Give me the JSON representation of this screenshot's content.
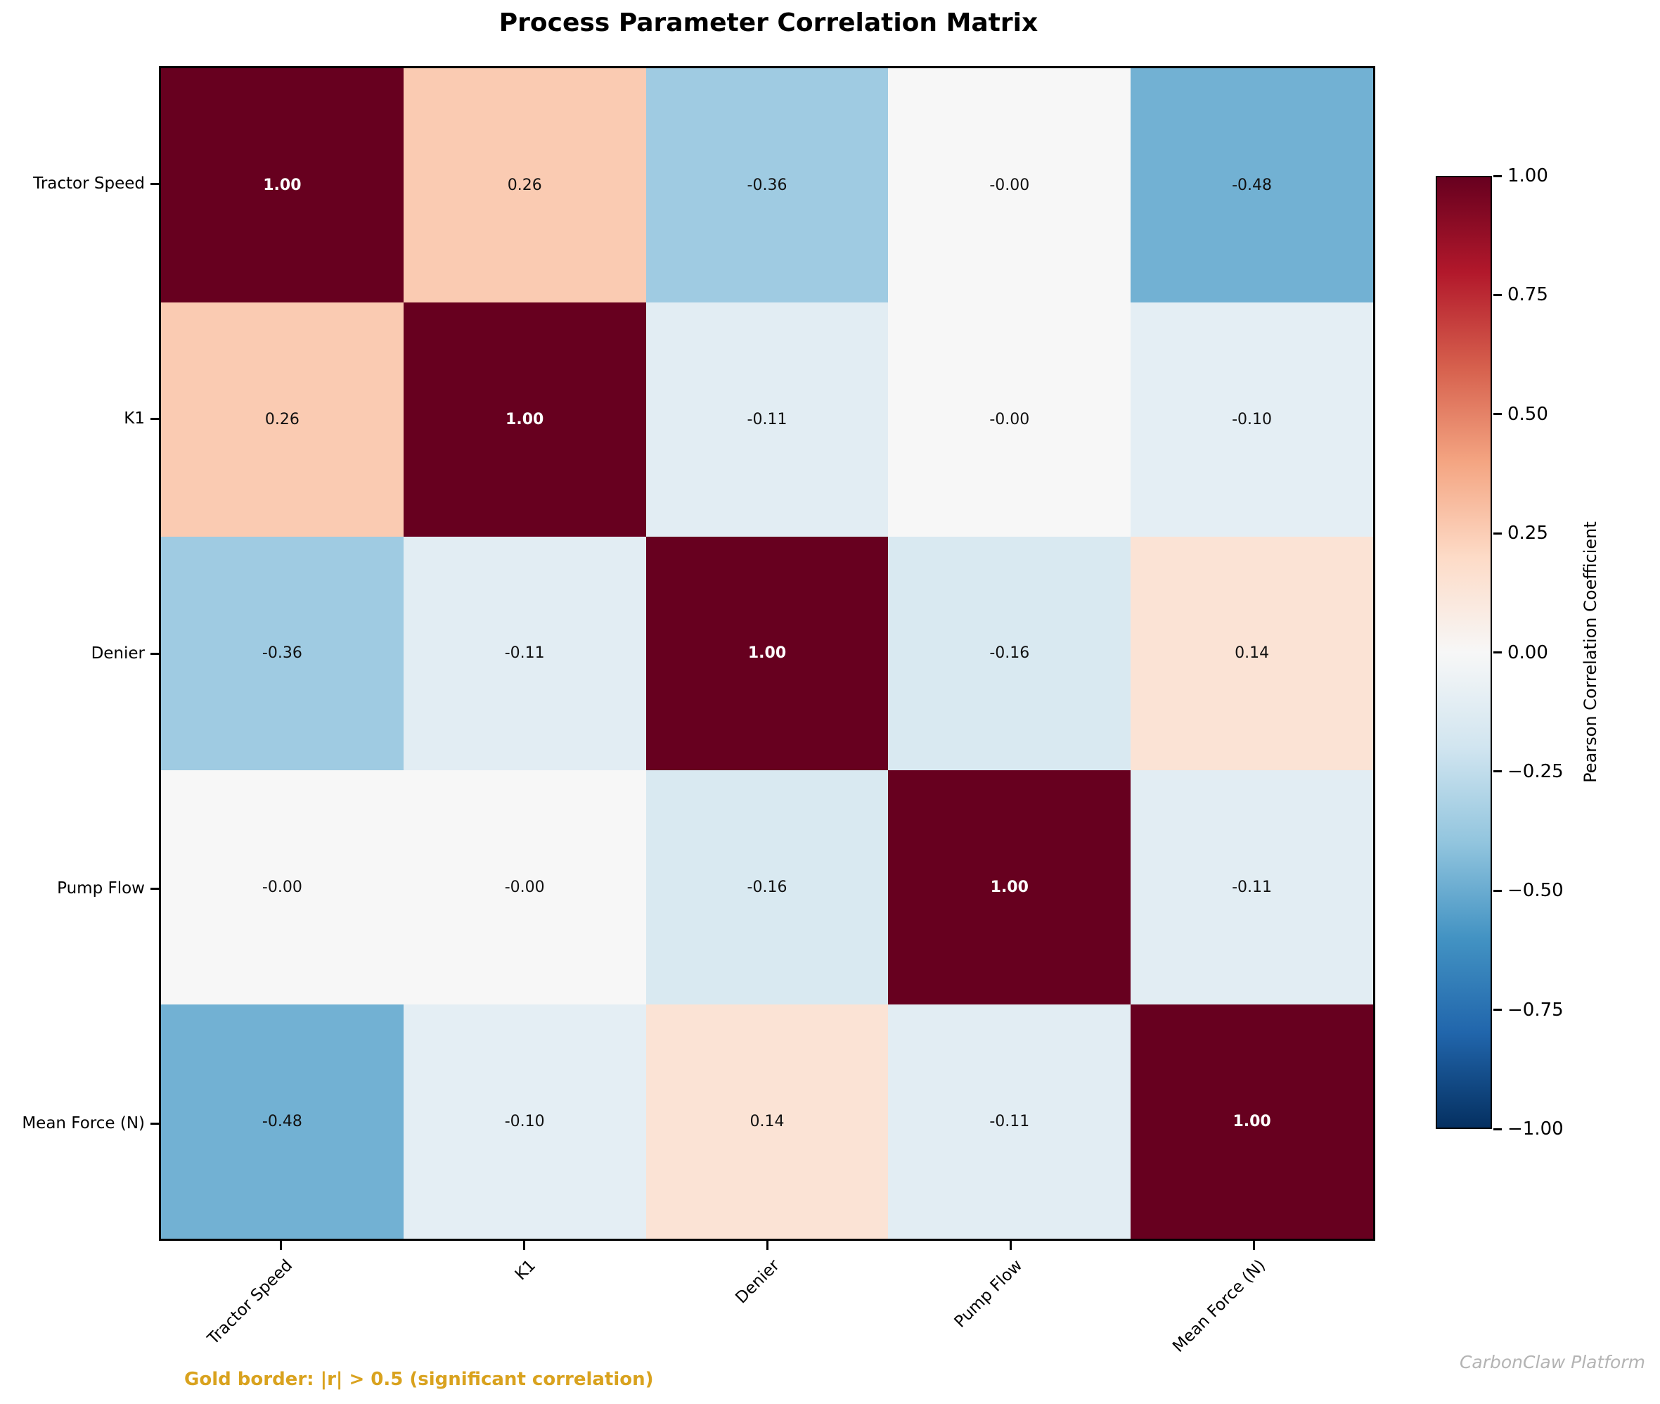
{
  "title": "Process Parameter Correlation Matrix",
  "annotations": {
    "gold_note": "Gold border: |r| > 0.5 (significant correlation)",
    "watermark": "CarbonClaw Platform"
  },
  "colors": {
    "note_gold": "#D9A21E",
    "watermark_gray": "#B4B4B4",
    "cell_text_dark": "#111111",
    "cell_text_light": "#FFFFFF",
    "axis_black": "#000000",
    "diagonal_maroon": "#67001F",
    "strong_negative_blue": "#72B1D3"
  },
  "chart_data": {
    "type": "heatmap",
    "title": "Process Parameter Correlation Matrix",
    "categories": [
      "Tractor Speed",
      "K1",
      "Denier",
      "Pump Flow",
      "Mean Force (N)"
    ],
    "matrix": [
      [
        1.0,
        0.26,
        -0.36,
        -0.0,
        -0.48
      ],
      [
        0.26,
        1.0,
        -0.11,
        -0.0,
        -0.1
      ],
      [
        -0.36,
        -0.11,
        1.0,
        -0.16,
        0.14
      ],
      [
        -0.0,
        -0.0,
        -0.16,
        1.0,
        -0.11
      ],
      [
        -0.48,
        -0.1,
        0.14,
        -0.11,
        1.0
      ]
    ],
    "cell_labels": [
      [
        "1.00",
        "0.26",
        "-0.36",
        "-0.00",
        "-0.48"
      ],
      [
        "0.26",
        "1.00",
        "-0.11",
        "-0.00",
        "-0.10"
      ],
      [
        "-0.36",
        "-0.11",
        "1.00",
        "-0.16",
        "0.14"
      ],
      [
        "-0.00",
        "-0.00",
        "-0.16",
        "1.00",
        "-0.11"
      ],
      [
        "-0.48",
        "-0.10",
        "0.14",
        "-0.11",
        "1.00"
      ]
    ],
    "value_range": [
      -1,
      1
    ],
    "colormap": "RdBu_r",
    "grid": false,
    "legend_position": "right-colorbar",
    "colorbar": {
      "label": "Pearson Correlation Coefficient",
      "tick_labels": [
        "1.00",
        "0.75",
        "0.50",
        "0.25",
        "0.00",
        "−0.25",
        "−0.50",
        "−0.75",
        "−1.00"
      ],
      "tick_values": [
        1,
        0.75,
        0.5,
        0.25,
        0,
        -0.25,
        -0.5,
        -0.75,
        -1
      ],
      "gradient_bottom_to_top": [
        "#053061",
        "#2166ac",
        "#4393c3",
        "#92c5de",
        "#d1e5f0",
        "#f7f7f7",
        "#fddbc7",
        "#f4a582",
        "#d6604d",
        "#b2182b",
        "#67001f"
      ]
    }
  }
}
